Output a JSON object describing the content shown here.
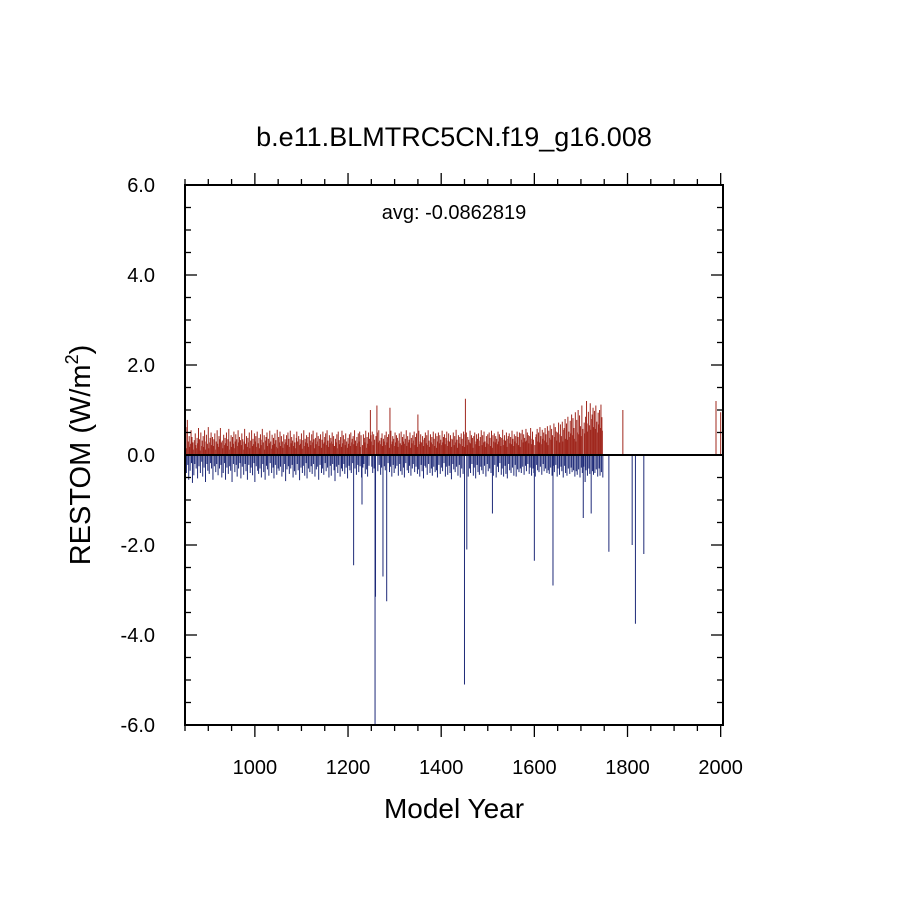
{
  "chart_data": {
    "type": "bar",
    "title": "b.e11.BLMTRC5CN.f19_g16.008",
    "annotation": "avg: -0.0862819",
    "xlabel": "Model Year",
    "ylabel_main": "RESTOM (W/m",
    "ylabel_sup": "2",
    "ylabel_close": ")",
    "xlim": [
      850,
      2005
    ],
    "ylim": [
      -6.0,
      6.0
    ],
    "x_ticks": [
      1000,
      1200,
      1400,
      1600,
      1800,
      2000
    ],
    "x_tick_labels": [
      "1000",
      "1200",
      "1400",
      "1600",
      "1800",
      "2000"
    ],
    "y_ticks": [
      -6.0,
      -4.0,
      -2.0,
      0.0,
      2.0,
      4.0,
      6.0
    ],
    "y_tick_labels": [
      "-6.0",
      "-4.0",
      "-2.0",
      "0.0",
      "2.0",
      "4.0",
      "6.0"
    ],
    "positive_color": "#a0281e",
    "negative_color": "#1e2a78",
    "x_start": 850,
    "annual_values": [
      -1.3,
      0.35,
      0.62,
      -0.4,
      0.15,
      0.78,
      -0.22,
      0.3,
      -0.55,
      0.42,
      0.18,
      -0.35,
      0.25,
      0.55,
      -0.18,
      0.4,
      -0.62,
      0.28,
      0.12,
      -0.45,
      0.33,
      -0.2,
      0.48,
      0.22,
      -0.3,
      0.15,
      0.38,
      -0.52,
      0.26,
      0.6,
      -0.25,
      0.35,
      0.1,
      -0.4,
      0.5,
      0.2,
      -0.15,
      0.32,
      -0.48,
      0.42,
      0.18,
      -0.28,
      0.55,
      0.12,
      -0.6,
      0.3,
      0.45,
      -0.2,
      0.25,
      -0.35,
      0.62,
      0.15,
      -0.42,
      0.28,
      0.38,
      -0.18,
      0.5,
      -0.3,
      0.22,
      0.4,
      -0.55,
      0.2,
      0.35,
      -0.25,
      0.48,
      0.12,
      -0.38,
      0.3,
      -0.2,
      0.55,
      0.25,
      -0.45,
      0.18,
      0.42,
      -0.3,
      0.35,
      0.6,
      -0.22,
      0.28,
      -0.5,
      0.32,
      0.15,
      -0.4,
      0.45,
      0.22,
      -0.18,
      0.38,
      -0.55,
      0.26,
      0.5,
      -0.28,
      0.2,
      0.35,
      -0.42,
      0.58,
      0.12,
      -0.25,
      0.3,
      -0.35,
      0.44,
      0.18,
      -0.6,
      0.4,
      0.25,
      -0.2,
      0.52,
      0.15,
      -0.38,
      0.3,
      0.46,
      -0.22,
      0.35,
      -0.48,
      0.2,
      0.55,
      -0.3,
      0.28,
      0.4,
      -0.18,
      0.33,
      -0.52,
      0.22,
      0.48,
      -0.26,
      0.35,
      0.12,
      -0.44,
      0.3,
      0.58,
      -0.2,
      0.25,
      -0.36,
      0.42,
      0.18,
      -0.55,
      0.38,
      0.28,
      -0.22,
      0.5,
      0.15,
      -0.4,
      0.32,
      -0.28,
      0.55,
      0.2,
      -0.45,
      0.36,
      0.24,
      -0.18,
      0.48,
      -0.6,
      0.3,
      0.42,
      -0.25,
      0.18,
      0.52,
      -0.35,
      0.26,
      -0.42,
      0.38,
      0.15,
      -0.3,
      0.46,
      0.22,
      -0.5,
      0.34,
      0.58,
      -0.2,
      0.28,
      -0.38,
      0.44,
      0.12,
      -0.55,
      0.32,
      0.4,
      -0.24,
      0.5,
      -0.32,
      0.2,
      0.36,
      -0.46,
      0.26,
      0.54,
      -0.18,
      0.3,
      0.14,
      -0.4,
      0.45,
      0.22,
      -0.28,
      0.38,
      -0.52,
      0.25,
      0.48,
      -0.22,
      0.33,
      0.18,
      -0.44,
      0.56,
      0.15,
      -0.3,
      0.4,
      -0.35,
      0.28,
      0.52,
      -0.26,
      0.2,
      0.42,
      -0.48,
      0.3,
      0.16,
      -0.38,
      0.46,
      0.24,
      -0.2,
      0.35,
      -0.58,
      0.28,
      0.44,
      -0.32,
      0.22,
      0.5,
      -0.25,
      0.36,
      -0.42,
      0.18,
      0.54,
      -0.3,
      0.26,
      0.4,
      -0.22,
      0.32,
      -0.5,
      0.2,
      0.46,
      -0.36,
      0.28,
      0.15,
      -0.44,
      0.38,
      0.52,
      -0.2,
      0.3,
      -0.34,
      0.42,
      0.22,
      -0.56,
      0.35,
      0.25,
      -0.28,
      0.48,
      0.14,
      -0.4,
      0.33,
      -0.24,
      0.55,
      0.2,
      -0.46,
      0.36,
      0.28,
      -0.18,
      0.44,
      -0.52,
      0.26,
      0.4,
      -0.3,
      0.18,
      0.5,
      -0.38,
      0.32,
      0.22,
      -0.25,
      0.46,
      -0.42,
      0.28,
      0.54,
      -0.2,
      0.35,
      0.15,
      -0.48,
      0.38,
      0.24,
      -0.32,
      0.5,
      -0.26,
      0.3,
      0.42,
      -0.55,
      0.2,
      0.36,
      -0.22,
      0.46,
      0.16,
      -0.4,
      0.34,
      -0.3,
      0.52,
      0.25,
      -0.44,
      0.28,
      0.4,
      -0.18,
      0.48,
      -0.36,
      0.22,
      0.55,
      -0.28,
      0.32,
      0.18,
      -0.5,
      0.44,
      0.26,
      -0.24,
      0.38,
      -0.46,
      0.3,
      0.5,
      -0.2,
      0.25,
      0.42,
      -0.34,
      0.2,
      -0.58,
      0.36,
      0.28,
      -0.26,
      0.46,
      0.15,
      -0.4,
      0.52,
      -0.22,
      0.33,
      0.24,
      -0.48,
      0.4,
      0.18,
      -0.3,
      0.54,
      -0.36,
      0.26,
      0.44,
      -0.2,
      0.35,
      -0.42,
      0.22,
      0.48,
      -0.28,
      0.3,
      0.16,
      -0.52,
      0.38,
      0.25,
      -0.24,
      0.46,
      -0.34,
      0.2,
      0.5,
      -0.4,
      0.28,
      0.36,
      -0.18,
      0.42,
      -0.46,
      0.24,
      0.55,
      -0.3,
      0.32,
      0.2,
      -0.44,
      0.4,
      0.26,
      -0.22,
      0.48,
      -0.38,
      0.3,
      0.52,
      -0.25,
      0.18,
      0.44,
      -0.5,
      0.34,
      0.22,
      -0.28,
      0.46,
      -0.2,
      0.38,
      0.28,
      -0.42,
      0.54,
      0.16,
      -0.32,
      0.4,
      -0.48,
      0.25,
      0.5,
      -0.24,
      0.36,
      0.2,
      -0.38,
      0.44,
      0.3,
      -0.26,
      0.52,
      -0.4,
      0.22,
      0.46,
      -0.3,
      0.34,
      0.18,
      -0.46,
      0.42,
      0.26,
      -0.2,
      0.5,
      -0.36,
      0.28,
      0.55,
      -0.22,
      0.32,
      0.24,
      -0.44,
      0.38,
      -0.28,
      0.48,
      0.2,
      -0.5,
      0.36,
      0.3,
      -0.25,
      0.44,
      -0.34,
      0.22,
      0.52,
      -0.42,
      0.28,
      0.4,
      -0.18,
      0.46,
      0.16,
      -0.38,
      0.34,
      -0.26,
      0.54,
      0.24,
      -0.48,
      0.3,
      0.42,
      -0.22,
      0.36,
      -0.4,
      0.2,
      0.5,
      -0.3,
      0.28,
      0.44,
      -0.24,
      0.38,
      0.18,
      -0.46,
      0.32,
      0.48,
      -0.2,
      0.26,
      -0.36,
      0.52,
      0.22,
      -0.44,
      0.4,
      0.3,
      -0.28,
      0.46,
      -0.5,
      0.25,
      0.36,
      -0.18,
      0.55,
      0.2,
      -0.34,
      0.42,
      0.28,
      -0.4,
      0.34,
      -0.24,
      0.5,
      0.16,
      -0.46,
      0.38,
      0.26,
      -0.3,
      0.44,
      -0.2,
      0.32,
      0.52,
      -0.38,
      0.22,
      0.4,
      -0.26,
      0.48,
      0.18,
      -0.42,
      0.36,
      -0.32,
      0.54,
      0.24,
      -0.48,
      0.3,
      0.46,
      -0.22,
      0.28,
      -0.36,
      0.42,
      0.2,
      -0.52,
      0.34,
      0.38,
      -0.24,
      0.5,
      -0.28,
      0.26,
      0.44,
      -0.44,
      0.22,
      0.55,
      -0.2,
      0.32,
      0.18,
      -0.4,
      0.46,
      0.28,
      -0.3,
      0.4,
      -0.46,
      0.24,
      0.52,
      -0.26,
      0.36,
      0.2,
      -0.38,
      0.48,
      0.16,
      -0.34,
      0.42,
      -0.5,
      0.3,
      0.5,
      -0.22,
      0.26,
      0.44,
      -0.42,
      0.34,
      0.22,
      -0.28,
      0.54,
      -0.36,
      0.28,
      0.4,
      -0.18,
      0.46,
      0.24,
      -0.48,
      0.38,
      -0.26,
      0.52,
      0.2,
      -0.44,
      0.32,
      0.48,
      -0.24,
      0.3,
      -0.4,
      0.44,
      0.18,
      -0.54,
      0.36,
      0.34,
      -0.2,
      0.5,
      -0.32,
      0.22,
      0.42,
      -0.38,
      0.28,
      0.56,
      -0.26,
      0.34,
      0.16,
      -0.46,
      0.44,
      0.26,
      -0.22,
      0.4,
      -0.5,
      0.24,
      0.48,
      -0.3,
      0.36,
      0.2,
      -0.42,
      0.52,
      0.18,
      -0.28,
      0.46,
      -0.36,
      0.32,
      0.5,
      -0.24,
      0.22,
      0.4,
      -0.48,
      0.34,
      0.28,
      -0.3,
      0.54,
      -0.4,
      0.26,
      0.44,
      -0.2,
      0.38,
      0.16,
      -0.46,
      0.42,
      -0.28,
      0.5,
      0.24,
      -0.52,
      0.3,
      0.46,
      -0.22,
      0.36,
      -0.38,
      0.48,
      0.2,
      -0.44,
      0.32,
      0.4,
      -0.26,
      0.55,
      -0.34,
      0.22,
      0.44,
      -0.42,
      0.28,
      0.52,
      -0.24,
      0.3,
      0.18,
      -0.48,
      0.42,
      0.26,
      -0.2,
      0.46,
      -0.36,
      0.24,
      0.5,
      -0.3,
      0.38,
      0.2,
      -0.4,
      0.54,
      0.16,
      -0.32,
      0.44,
      -0.46,
      0.3,
      0.48,
      -0.22,
      0.28,
      0.42,
      -0.5,
      0.36,
      0.24,
      -0.26,
      0.52,
      -0.38,
      0.3,
      0.46,
      -0.18,
      0.4,
      0.2,
      -0.44,
      0.38,
      -0.3,
      0.56,
      0.22,
      -0.48,
      0.34,
      0.44,
      -0.24,
      0.32,
      -0.42,
      0.5,
      0.18,
      -0.52,
      0.36,
      0.42,
      -0.2,
      0.48,
      -0.34,
      0.26,
      0.4,
      -0.4,
      0.24,
      0.54,
      -0.28,
      0.36,
      0.2,
      -0.46,
      0.46,
      0.3,
      -0.22,
      0.42,
      -0.48,
      0.26,
      0.52,
      -0.32,
      0.4,
      0.22,
      -0.38,
      0.5,
      0.18,
      -0.3,
      0.48,
      -0.4,
      0.34,
      0.56,
      -0.26,
      0.28,
      0.46,
      -0.44,
      0.38,
      0.3,
      -0.24,
      0.58,
      -0.36,
      0.32,
      0.5,
      -0.2,
      0.44,
      0.26,
      -0.42,
      0.42,
      -0.28,
      0.6,
      0.24,
      -0.46,
      0.36,
      0.52,
      -0.3,
      0.34,
      -0.4,
      0.54,
      0.22,
      -0.48,
      0.4,
      0.46,
      -0.22,
      0.58,
      -0.34,
      0.3,
      0.5,
      -0.38,
      0.28,
      0.62,
      -0.26,
      0.42,
      0.24,
      -0.44,
      0.56,
      0.36,
      -0.2,
      0.5,
      -0.36,
      0.32,
      0.6,
      -0.3,
      0.46,
      0.28,
      -0.4,
      0.64,
      0.22,
      -0.34,
      0.54,
      -0.42,
      0.38,
      0.66,
      -0.28,
      0.34,
      0.58,
      -0.46,
      0.44,
      0.3,
      -0.24,
      0.7,
      -0.38,
      0.4,
      0.62,
      -0.22,
      0.52,
      0.32,
      -0.48,
      0.5,
      -0.3,
      0.72,
      0.28,
      -0.44,
      0.46,
      0.68,
      -0.26,
      0.42,
      -0.36,
      0.74,
      0.3,
      -0.5,
      0.56,
      0.6,
      -0.24,
      0.8,
      -0.4,
      0.36,
      0.7,
      -0.46,
      0.34,
      0.85,
      -0.3,
      0.52,
      0.4,
      -0.42,
      0.76,
      0.48,
      -0.28,
      0.9,
      -0.38,
      0.44,
      0.82,
      -0.34,
      0.6,
      0.36,
      -0.48,
      0.95,
      0.3,
      -0.36,
      0.78,
      -0.44,
      0.5,
      1.0,
      -0.32,
      0.46,
      0.88,
      -0.5,
      0.64,
      0.42,
      -0.28,
      1.1,
      -0.4,
      0.58,
      0.92,
      -0.26,
      0.72,
      0.48,
      -0.6,
      0.85,
      -0.34,
      1.2,
      0.52,
      -0.46,
      0.7,
      0.96,
      -0.3,
      0.66,
      -0.42,
      1.15,
      0.56,
      -1.3,
      0.8,
      0.9,
      -0.36,
      1.05,
      -0.44,
      0.62,
      0.98,
      -0.4,
      0.58,
      1.1,
      -0.32,
      0.74,
      0.5,
      -0.48,
      0.94,
      0.68,
      -0.3,
      1.0,
      -0.46,
      0.6,
      1.12,
      -0.38,
      0.84,
      0.54,
      -0.5
    ],
    "spikes": [
      {
        "x": 1212,
        "value": -2.45
      },
      {
        "x": 1230,
        "value": -1.1
      },
      {
        "x": 1248,
        "value": 1.0
      },
      {
        "x": 1258,
        "value": -6.0
      },
      {
        "x": 1259,
        "value": -3.15
      },
      {
        "x": 1262,
        "value": 1.1
      },
      {
        "x": 1275,
        "value": -2.7
      },
      {
        "x": 1283,
        "value": -3.25
      },
      {
        "x": 1290,
        "value": 1.05
      },
      {
        "x": 1350,
        "value": 0.9
      },
      {
        "x": 1450,
        "value": -5.1
      },
      {
        "x": 1452,
        "value": 1.25
      },
      {
        "x": 1455,
        "value": -2.1
      },
      {
        "x": 1510,
        "value": -1.3
      },
      {
        "x": 1600,
        "value": -2.35
      },
      {
        "x": 1640,
        "value": -2.9
      },
      {
        "x": 1705,
        "value": -1.4
      },
      {
        "x": 1760,
        "value": -2.15
      },
      {
        "x": 1790,
        "value": 1.0
      },
      {
        "x": 1810,
        "value": -2.0
      },
      {
        "x": 1817,
        "value": -3.75
      },
      {
        "x": 1835,
        "value": -2.2
      },
      {
        "x": 1990,
        "value": 1.2
      },
      {
        "x": 2000,
        "value": 0.95
      }
    ]
  }
}
